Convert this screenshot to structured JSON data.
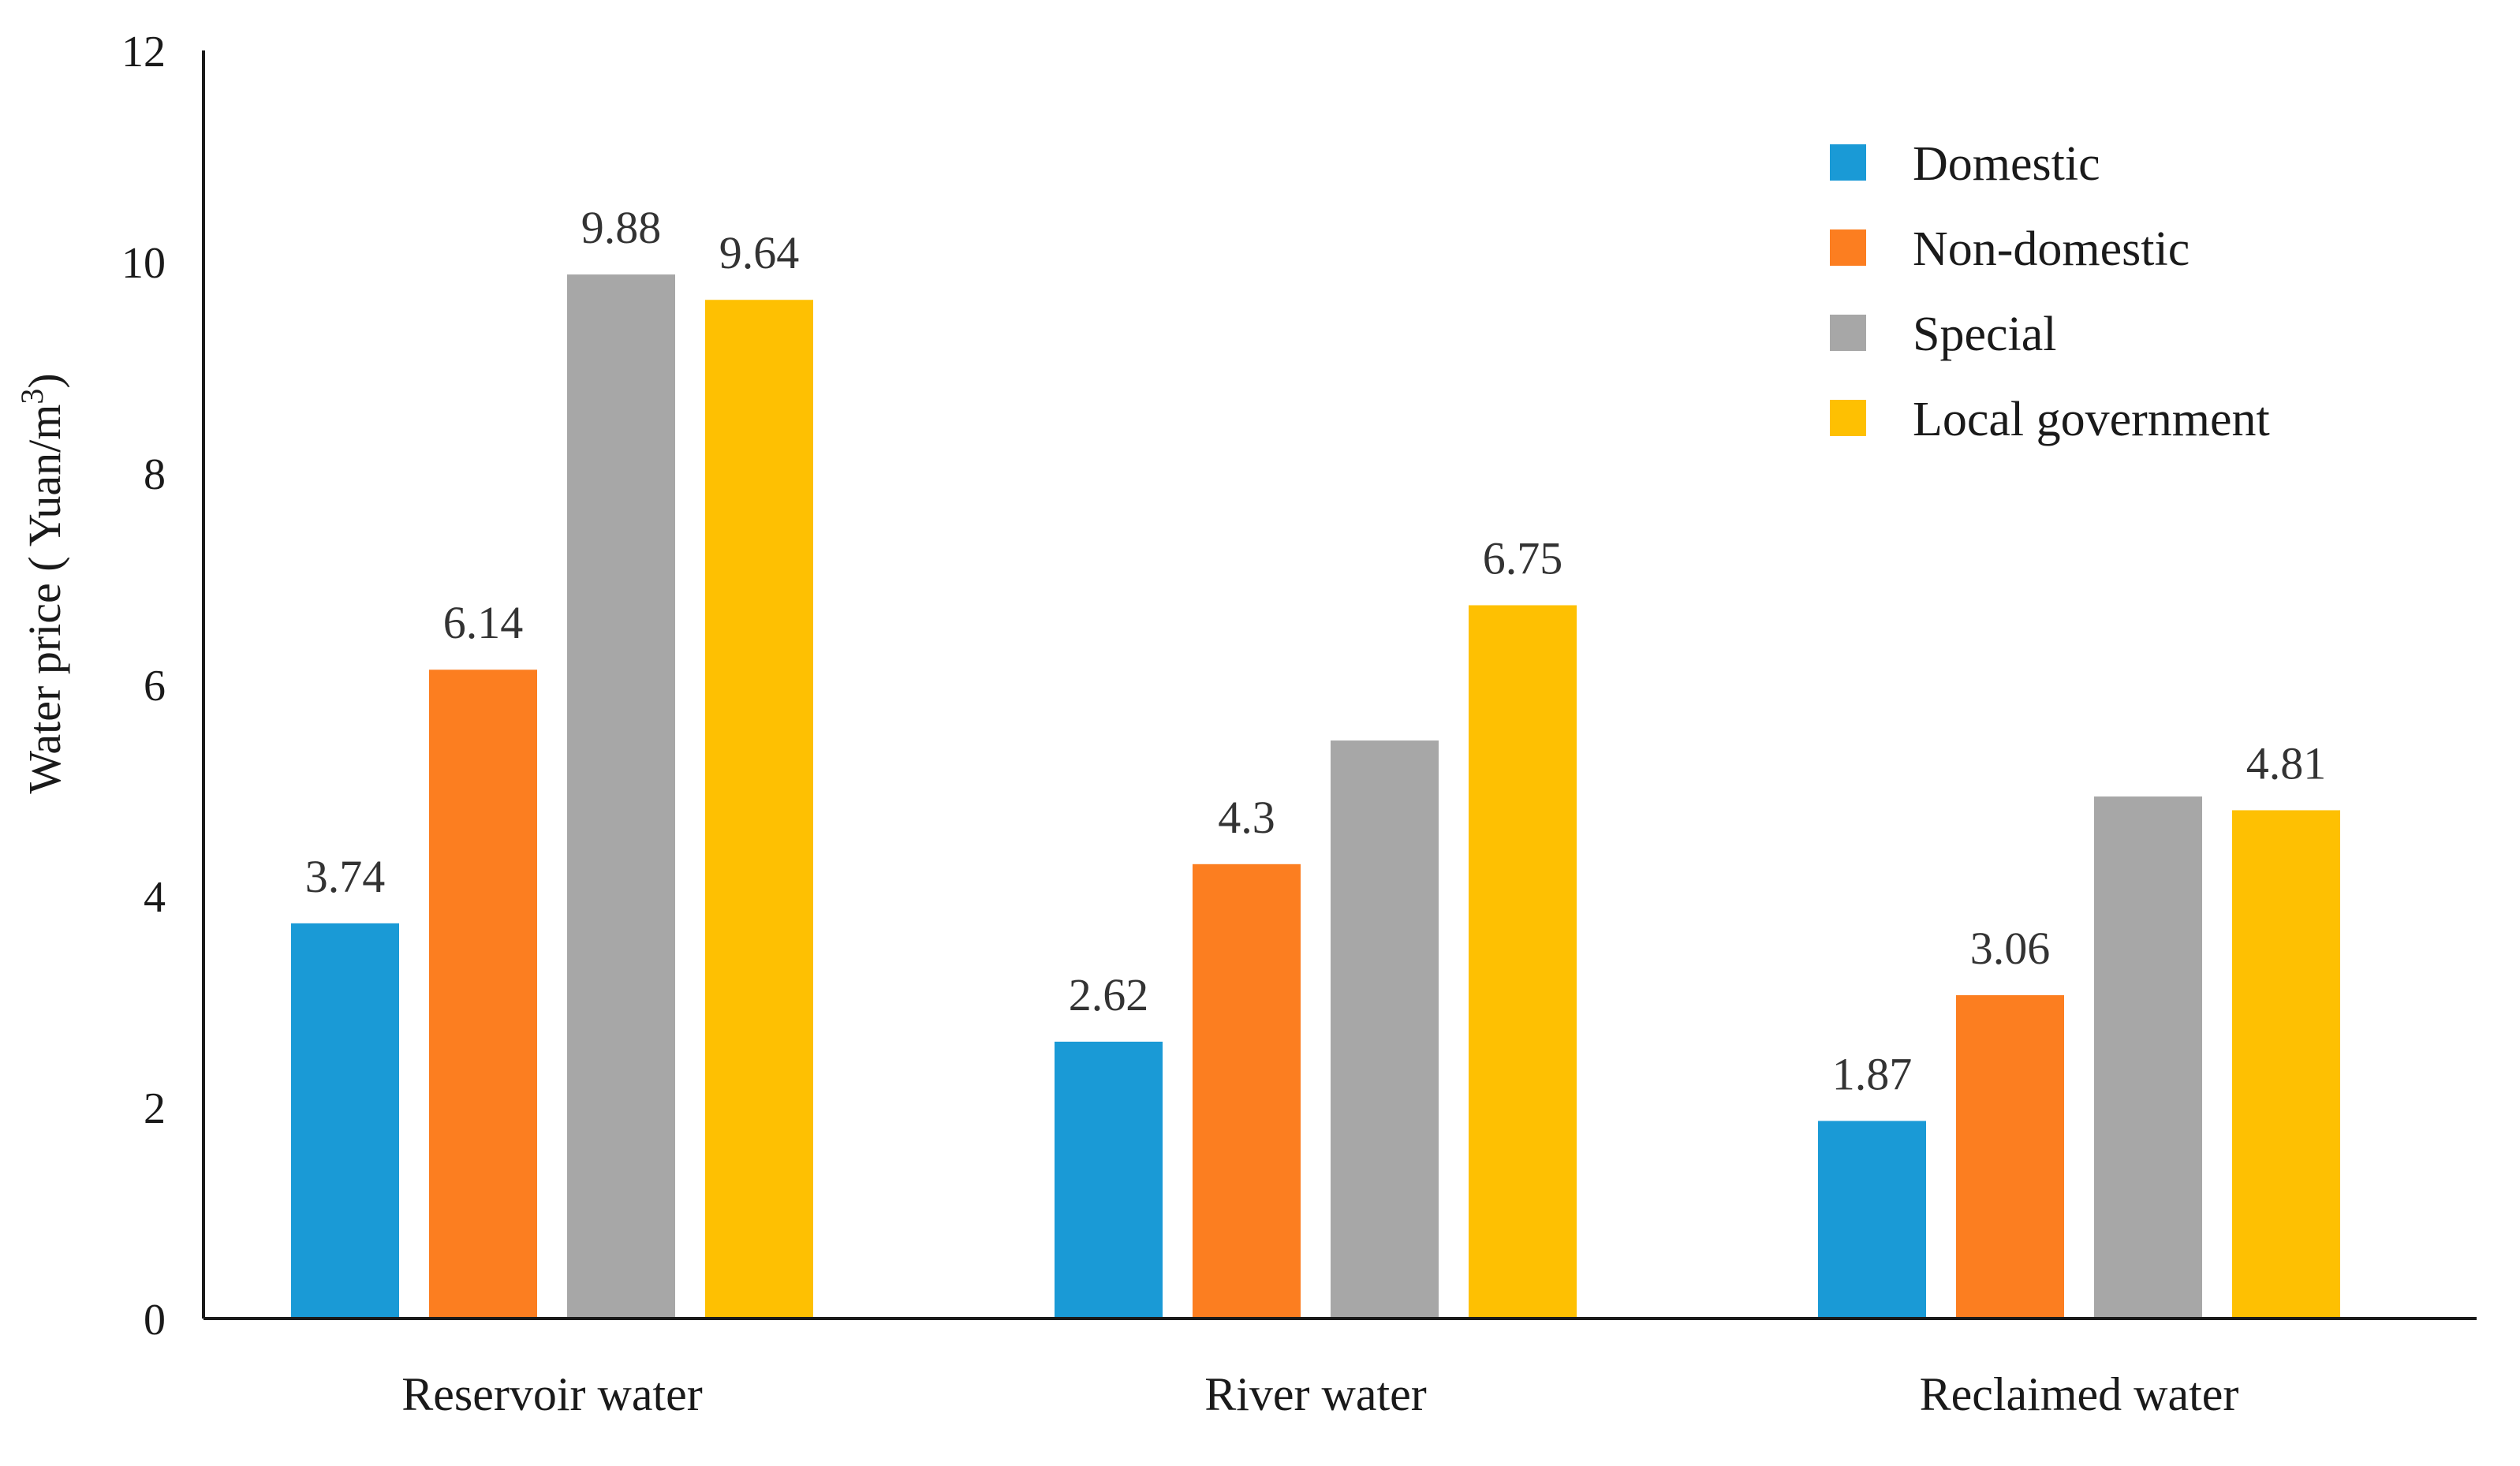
{
  "chart_data": {
    "type": "bar",
    "categories": [
      "Reservoir water",
      "River water",
      "Reclaimed water"
    ],
    "series": [
      {
        "name": "Domestic",
        "color": "#1a9ad6",
        "values": [
          3.74,
          2.62,
          1.87
        ],
        "labels": [
          "3.74",
          "2.62",
          "1.87"
        ]
      },
      {
        "name": "Non-domestic",
        "color": "#fc7e20",
        "values": [
          6.14,
          4.3,
          3.06
        ],
        "labels": [
          "6.14",
          "4.3",
          "3.06"
        ]
      },
      {
        "name": "Special",
        "color": "#a7a7a7",
        "values": [
          9.88,
          5.47,
          4.94
        ],
        "labels": [
          "9.88",
          "",
          ""
        ]
      },
      {
        "name": "Local government",
        "color": "#fec002",
        "values": [
          9.64,
          6.75,
          4.81
        ],
        "labels": [
          "9.64",
          "6.75",
          "4.81"
        ]
      }
    ],
    "yticks": [
      "0",
      "2",
      "4",
      "6",
      "8",
      "10",
      "12"
    ],
    "ylim": [
      0,
      12
    ],
    "ylabel": "Water price ( Yuan/m",
    "ylabel_sup": "3",
    "ylabel_close": ")",
    "xlabel": "",
    "title": "",
    "legend_position": "top-right"
  }
}
